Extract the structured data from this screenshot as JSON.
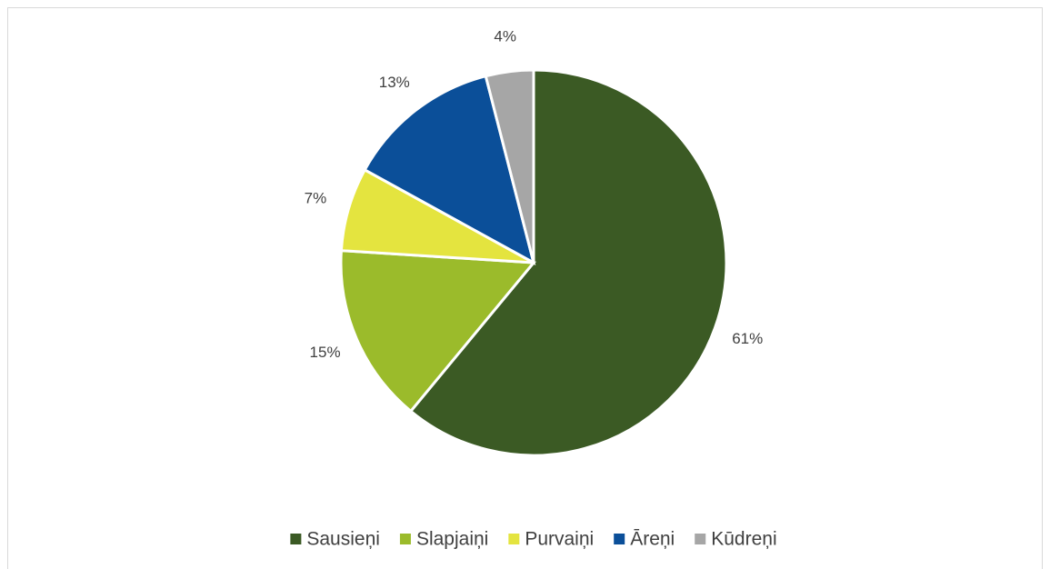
{
  "chart_data": {
    "type": "pie",
    "categories": [
      "Sausieņi",
      "Slapjaiņi",
      "Purvaiņi",
      "Āreņi",
      "Kūdreņi"
    ],
    "values": [
      61,
      15,
      7,
      13,
      4
    ],
    "value_labels": [
      "61%",
      "15%",
      "7%",
      "13%",
      "4%"
    ],
    "colors": [
      "#3b5a24",
      "#9bbb2b",
      "#e4e43f",
      "#0b4f99",
      "#a6a6a6"
    ],
    "legend": "bottom"
  }
}
